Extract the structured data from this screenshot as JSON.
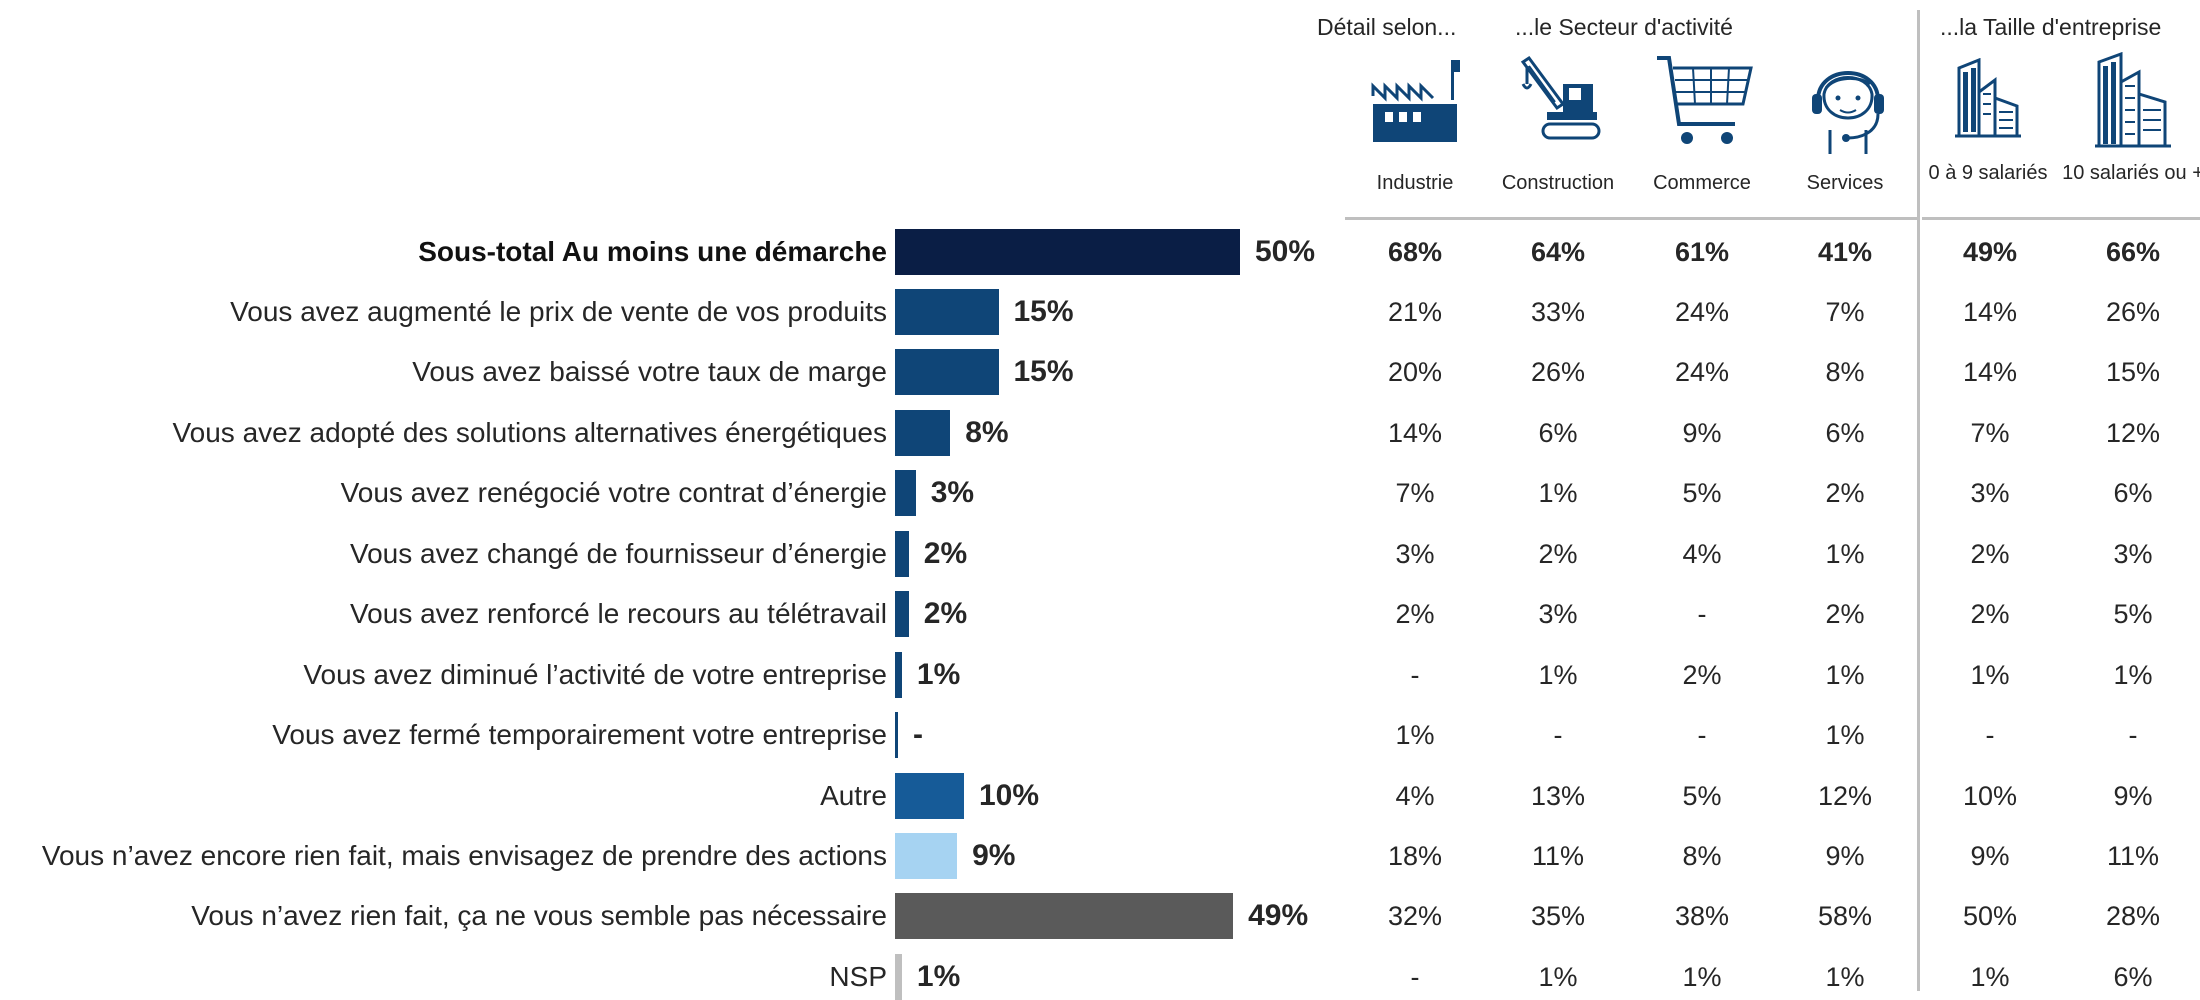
{
  "header": {
    "detail_label": "Détail selon...",
    "sector_label": "...le Secteur d'activité",
    "size_label": "...la Taille d'entreprise"
  },
  "columns": [
    {
      "name": "Industrie",
      "icon": "factory-icon"
    },
    {
      "name": "Construction",
      "icon": "crane-icon"
    },
    {
      "name": "Commerce",
      "icon": "shopping-cart-icon"
    },
    {
      "name": "Services",
      "icon": "headset-operator-icon"
    },
    {
      "name": "0 à 9 salariés",
      "icon": "small-building-icon"
    },
    {
      "name": "10 salariés ou +",
      "icon": "tall-building-icon"
    }
  ],
  "chart_data": {
    "type": "bar",
    "orientation": "horizontal",
    "categories": [
      "Sous-total Au moins une démarche",
      "Vous avez augmenté le prix de vente de vos produits",
      "Vous avez baissé votre taux de marge",
      "Vous avez adopté des solutions alternatives énergétiques",
      "Vous avez renégocié votre contrat d’énergie",
      "Vous avez changé de fournisseur d’énergie",
      "Vous avez renforcé le recours au télétravail",
      "Vous avez diminué l’activité de votre entreprise",
      "Vous avez fermé temporairement votre entreprise",
      "Autre",
      "Vous n’avez encore rien fait, mais envisagez de prendre des actions",
      "Vous n’avez rien fait, ça ne vous semble pas nécessaire",
      "NSP"
    ],
    "values": [
      50,
      15,
      15,
      8,
      3,
      2,
      2,
      1,
      0,
      10,
      9,
      49,
      1
    ],
    "value_labels": [
      "50%",
      "15%",
      "15%",
      "8%",
      "3%",
      "2%",
      "2%",
      "1%",
      "-",
      "10%",
      "9%",
      "49%",
      "1%"
    ],
    "colors": [
      "#0a1e45",
      "#0f4577",
      "#0f4577",
      "#0f4577",
      "#0f4577",
      "#0f4577",
      "#0f4577",
      "#0f4577",
      "#0f4577",
      "#165b98",
      "#a6d3f2",
      "#5a5a5a",
      "#bfbfbf"
    ],
    "bold_rows": [
      0
    ],
    "xlim": [
      0,
      50
    ],
    "table": [
      [
        "68%",
        "64%",
        "61%",
        "41%",
        "49%",
        "66%"
      ],
      [
        "21%",
        "33%",
        "24%",
        "7%",
        "14%",
        "26%"
      ],
      [
        "20%",
        "26%",
        "24%",
        "8%",
        "14%",
        "15%"
      ],
      [
        "14%",
        "6%",
        "9%",
        "6%",
        "7%",
        "12%"
      ],
      [
        "7%",
        "1%",
        "5%",
        "2%",
        "3%",
        "6%"
      ],
      [
        "3%",
        "2%",
        "4%",
        "1%",
        "2%",
        "3%"
      ],
      [
        "2%",
        "3%",
        "-",
        "2%",
        "2%",
        "5%"
      ],
      [
        "-",
        "1%",
        "2%",
        "1%",
        "1%",
        "1%"
      ],
      [
        "1%",
        "-",
        "-",
        "1%",
        "-",
        "-"
      ],
      [
        "4%",
        "13%",
        "5%",
        "12%",
        "10%",
        "9%"
      ],
      [
        "18%",
        "11%",
        "8%",
        "9%",
        "9%",
        "11%"
      ],
      [
        "32%",
        "35%",
        "38%",
        "58%",
        "50%",
        "28%"
      ],
      [
        "-",
        "1%",
        "1%",
        "1%",
        "1%",
        "6%"
      ]
    ]
  }
}
